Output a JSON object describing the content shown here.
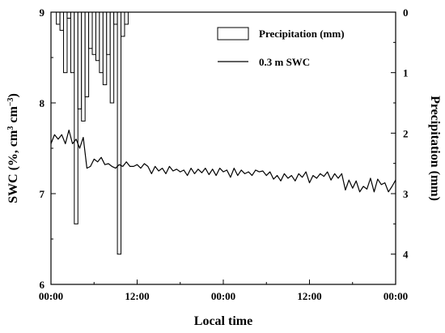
{
  "chart_data": {
    "type": "line",
    "xlabel": "Local time",
    "ylabel_left": "SWC (%, cm³ cm⁻³)",
    "ylabel_left_parts": [
      "SWC (%, cm",
      "3",
      " cm",
      "−3",
      ")"
    ],
    "ylabel_right": "Precipitation (mm)",
    "x_unit": "hours from start",
    "xlim_hours": [
      0,
      48
    ],
    "x_ticks_hours": [
      0,
      12,
      24,
      36,
      48
    ],
    "x_tick_labels": [
      "00:00",
      "12:00",
      "00:00",
      "12:00",
      "00:00"
    ],
    "ylim_left": [
      6,
      9
    ],
    "y_ticks_left": [
      6,
      7,
      8,
      9
    ],
    "y_tick_labels_left": [
      "6",
      "7",
      "8",
      "9"
    ],
    "ylim_right_inverted": [
      0,
      4.5
    ],
    "y_ticks_right": [
      0,
      1,
      2,
      3,
      4
    ],
    "y_tick_labels_right": [
      "0",
      "1",
      "2",
      "3",
      "4"
    ],
    "legend": [
      {
        "label": "Precipitation (mm)",
        "symbol": "bar"
      },
      {
        "label": "0.3 m SWC",
        "symbol": "line"
      }
    ],
    "legend_position": "top-right",
    "grid": false,
    "series": [
      {
        "name": "Precipitation (mm)",
        "type": "bar",
        "axis": "right",
        "bar_width_hours": 0.5,
        "x": [
          1.0,
          1.5,
          2.0,
          2.5,
          3.0,
          3.5,
          4.0,
          4.5,
          5.0,
          5.5,
          6.0,
          6.5,
          7.0,
          7.5,
          8.0,
          8.5,
          9.0,
          9.5,
          10.0,
          10.5
        ],
        "values": [
          0.2,
          0.3,
          1.0,
          0.1,
          1.0,
          3.5,
          1.6,
          1.8,
          1.4,
          0.6,
          0.7,
          0.8,
          1.0,
          1.2,
          0.7,
          1.5,
          0.2,
          4.0,
          0.4,
          0.2
        ]
      },
      {
        "name": "0.3 m SWC",
        "type": "line",
        "axis": "left",
        "x": [
          0,
          0.5,
          1,
          1.5,
          2,
          2.5,
          3,
          3.5,
          4,
          4.5,
          5,
          5.5,
          6,
          6.5,
          7,
          7.5,
          8,
          8.5,
          9,
          9.5,
          10,
          10.5,
          11,
          11.5,
          12,
          12.5,
          13,
          13.5,
          14,
          14.5,
          15,
          15.5,
          16,
          16.5,
          17,
          17.5,
          18,
          18.5,
          19,
          19.5,
          20,
          20.5,
          21,
          21.5,
          22,
          22.5,
          23,
          23.5,
          24,
          24.5,
          25,
          25.5,
          26,
          26.5,
          27,
          27.5,
          28,
          28.5,
          29,
          29.5,
          30,
          30.5,
          31,
          31.5,
          32,
          32.5,
          33,
          33.5,
          34,
          34.5,
          35,
          35.5,
          36,
          36.5,
          37,
          37.5,
          38,
          38.5,
          39,
          39.5,
          40,
          40.5,
          41,
          41.5,
          42,
          42.5,
          43,
          43.5,
          44,
          44.5,
          45,
          45.5,
          46,
          46.5,
          47,
          47.5,
          48
        ],
        "values": [
          7.55,
          7.65,
          7.6,
          7.65,
          7.55,
          7.7,
          7.55,
          7.6,
          7.5,
          7.62,
          7.28,
          7.3,
          7.38,
          7.35,
          7.4,
          7.32,
          7.33,
          7.3,
          7.28,
          7.32,
          7.3,
          7.35,
          7.3,
          7.3,
          7.32,
          7.28,
          7.33,
          7.3,
          7.22,
          7.3,
          7.25,
          7.28,
          7.22,
          7.3,
          7.25,
          7.27,
          7.24,
          7.26,
          7.2,
          7.28,
          7.22,
          7.27,
          7.23,
          7.28,
          7.21,
          7.27,
          7.2,
          7.28,
          7.24,
          7.26,
          7.18,
          7.28,
          7.2,
          7.26,
          7.22,
          7.24,
          7.2,
          7.26,
          7.24,
          7.25,
          7.2,
          7.24,
          7.16,
          7.2,
          7.14,
          7.22,
          7.17,
          7.2,
          7.14,
          7.22,
          7.18,
          7.24,
          7.12,
          7.2,
          7.17,
          7.22,
          7.19,
          7.24,
          7.15,
          7.22,
          7.17,
          7.22,
          7.04,
          7.15,
          7.06,
          7.14,
          7.02,
          7.08,
          7.05,
          7.17,
          7.02,
          7.16,
          7.1,
          7.12,
          7.02,
          7.08,
          7.15
        ]
      }
    ]
  }
}
